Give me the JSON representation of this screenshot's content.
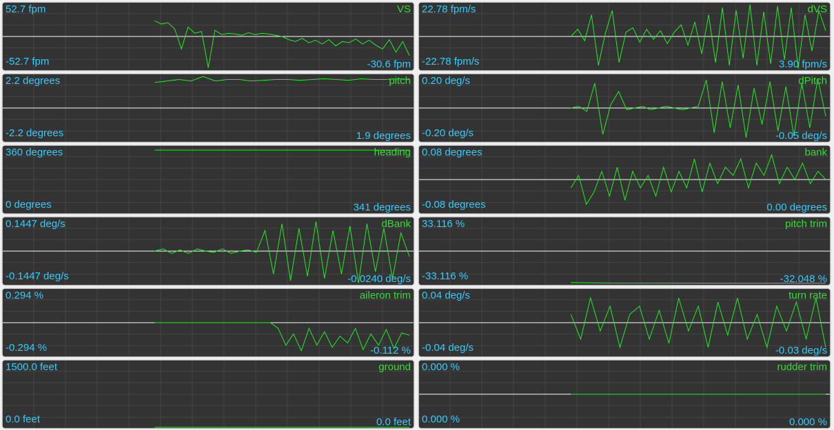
{
  "panels": [
    {
      "name": "VS",
      "top": {
        "value": 52.7,
        "label": "52.7 fpm"
      },
      "bottom": {
        "value": -52.7,
        "label": "-52.7 fpm"
      },
      "current": {
        "value": -30.6,
        "label": "-30.6 fpm"
      },
      "trace": [
        25,
        20,
        22,
        12,
        -20,
        15,
        5,
        8,
        -50,
        10,
        3,
        5,
        4,
        2,
        6,
        3,
        5,
        4,
        2,
        0,
        -5,
        -8,
        -3,
        -10,
        -6,
        -12,
        -5,
        -15,
        -8,
        -10,
        -4,
        -12,
        -6,
        -14,
        -20,
        -5,
        -25,
        -8,
        -30.6
      ]
    },
    {
      "name": "dVS",
      "top": {
        "value": 22.78,
        "label": "22.78 fpm/s"
      },
      "bottom": {
        "value": -22.78,
        "label": "-22.78 fpm/s"
      },
      "current": {
        "value": 3.9,
        "label": "3.90 fpm/s"
      },
      "trace": [
        0,
        5,
        -3,
        15,
        -20,
        2,
        18,
        -18,
        3,
        6,
        -4,
        5,
        -2,
        4,
        -5,
        3,
        8,
        -6,
        10,
        -12,
        15,
        -18,
        20,
        -20,
        18,
        -15,
        22,
        -20,
        17,
        -19,
        21,
        -16,
        20,
        -22,
        15,
        -10,
        18,
        3.9
      ]
    },
    {
      "name": "pitch",
      "top": {
        "value": 2.2,
        "label": "2.2 degrees"
      },
      "bottom": {
        "value": -2.2,
        "label": "-2.2 degrees"
      },
      "current": {
        "value": 1.9,
        "label": "1.9 degrees"
      },
      "trace": [
        1.7,
        1.8,
        1.9,
        1.8,
        2.1,
        1.8,
        1.9,
        1.9,
        1.8,
        1.85,
        1.9,
        1.9,
        1.85,
        1.9,
        1.95,
        1.9,
        1.85,
        1.95,
        1.9,
        1.9,
        1.95,
        1.9
      ]
    },
    {
      "name": "dPitch",
      "top": {
        "value": 0.2,
        "label": "0.20 deg/s"
      },
      "bottom": {
        "value": -0.2,
        "label": "-0.20 deg/s"
      },
      "current": {
        "value": -0.05,
        "label": "-0.05 deg/s"
      },
      "trace": [
        0,
        0.01,
        -0.02,
        0.15,
        -0.16,
        0.02,
        0.1,
        -0.01,
        0,
        0.01,
        -0.01,
        0,
        0.01,
        0,
        -0.01,
        0,
        0.01,
        0.17,
        -0.15,
        0.16,
        -0.12,
        0.14,
        -0.18,
        0.12,
        -0.1,
        0.16,
        -0.14,
        0.13,
        -0.17,
        0.15,
        -0.12,
        0.18,
        -0.05
      ]
    },
    {
      "name": "heading",
      "top": {
        "value": 360,
        "label": "360 degrees"
      },
      "bottom": {
        "value": 0,
        "label": "0 degrees"
      },
      "current": {
        "value": 341,
        "label": "341 degrees"
      },
      "trace": [
        341,
        341,
        341,
        341,
        341
      ]
    },
    {
      "name": "bank",
      "top": {
        "value": 0.08,
        "label": "0.08 degrees"
      },
      "bottom": {
        "value": -0.08,
        "label": "-0.08 degrees"
      },
      "current": {
        "value": 0,
        "label": "0.00 degrees"
      },
      "trace": [
        -0.02,
        0.01,
        -0.06,
        -0.03,
        0.02,
        -0.04,
        0.03,
        -0.05,
        0.02,
        -0.02,
        0.01,
        -0.04,
        0.03,
        -0.03,
        0.02,
        -0.02,
        0.05,
        -0.03,
        0.04,
        -0.01,
        0.03,
        0.01,
        0.05,
        -0.02,
        0.04,
        0.01,
        0.06,
        -0.01,
        0.03,
        0,
        0.04,
        -0.01,
        0.02,
        0
      ]
    },
    {
      "name": "dBank",
      "top": {
        "value": 0.1447,
        "label": "0.1447 deg/s"
      },
      "bottom": {
        "value": -0.1447,
        "label": "-0.1447 deg/s"
      },
      "current": {
        "value": -0.024,
        "label": "-0.0240 deg/s"
      },
      "trace": [
        0,
        0.01,
        -0.01,
        0.005,
        -0.01,
        0.01,
        0,
        -0.005,
        0.01,
        -0.01,
        0,
        0.005,
        -0.005,
        0.09,
        -0.1,
        0.12,
        -0.13,
        0.1,
        -0.11,
        0.13,
        -0.12,
        0.09,
        -0.1,
        0.11,
        -0.14,
        0.12,
        -0.09,
        0.1,
        -0.12,
        0.08,
        -0.024
      ]
    },
    {
      "name": "pitch trim",
      "top": {
        "value": 33.116,
        "label": "33.116 %"
      },
      "bottom": {
        "value": -33.116,
        "label": "-33.116 %"
      },
      "current": {
        "value": -32.048,
        "label": "-32.048 %"
      },
      "trace": [
        -31.5,
        -32,
        -32,
        -32.05,
        -32.05,
        -32.05,
        -32.048
      ]
    },
    {
      "name": "aileron trim",
      "top": {
        "value": 0.294,
        "label": "0.294 %"
      },
      "bottom": {
        "value": -0.294,
        "label": "-0.294 %"
      },
      "current": {
        "value": -0.112,
        "label": "-0.112 %"
      },
      "trace": [
        0,
        0,
        0,
        0,
        0,
        0,
        0,
        0,
        0,
        0,
        0,
        0,
        0,
        0,
        0,
        0,
        -0.05,
        -0.2,
        -0.1,
        -0.25,
        -0.05,
        -0.2,
        -0.08,
        -0.22,
        -0.12,
        -0.18,
        -0.05,
        -0.24,
        -0.1,
        -0.2,
        -0.06,
        -0.23,
        -0.09,
        -0.112
      ]
    },
    {
      "name": "turn rate",
      "top": {
        "value": 0.04,
        "label": "0.04 deg/s"
      },
      "bottom": {
        "value": -0.04,
        "label": "-0.04 deg/s"
      },
      "current": {
        "value": -0.03,
        "label": "-0.03 deg/s"
      },
      "trace": [
        0.01,
        -0.02,
        0.03,
        -0.01,
        0.02,
        -0.03,
        0.01,
        0.02,
        -0.02,
        0.015,
        -0.025,
        0.03,
        -0.01,
        0.02,
        -0.03,
        0.025,
        -0.015,
        0.03,
        -0.02,
        0.01,
        -0.03,
        0.02,
        -0.01,
        0.025,
        -0.02,
        0.03,
        -0.03
      ]
    },
    {
      "name": "ground",
      "top": {
        "value": 1500,
        "label": "1500.0 feet"
      },
      "bottom": {
        "value": 0,
        "label": "0.0 feet"
      },
      "current": {
        "value": 0,
        "label": "0.0 feet"
      },
      "trace": [
        0,
        0
      ]
    },
    {
      "name": "rudder trim",
      "top": {
        "value": 0,
        "label": "0.000 %"
      },
      "bottom": {
        "value": 0,
        "label": "0.000 %"
      },
      "current": {
        "value": 0,
        "label": "0.000 %"
      },
      "trace": [
        0,
        0
      ]
    }
  ]
}
